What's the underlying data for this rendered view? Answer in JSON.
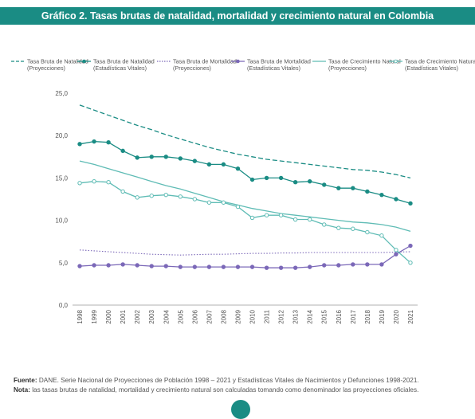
{
  "title": "Gráfico 2. Tasas brutas de natalidad, mortalidad y crecimiento natural en Colombia",
  "footer": {
    "fuente_label": "Fuente:",
    "fuente_text": " DANE. Serie Nacional de Proyecciones de Población 1998 – 2021 y Estadísticas Vitales de Nacimientos y Defunciones 1998-2021.",
    "nota_label": "Nota:",
    "nota_text": " las tasas brutas de natalidad, mortalidad y crecimiento natural son calculadas tomando como denominador las proyecciones oficiales."
  },
  "colors": {
    "dark_teal": "#1a8c84",
    "light_teal": "#5fbcb5",
    "purple": "#7b68b8",
    "axis": "#999999"
  },
  "chart_data": {
    "type": "line",
    "ylim": [
      0,
      25
    ],
    "yticks": [
      "0,0",
      "5,0",
      "10,0",
      "15,0",
      "20,0",
      "25,0"
    ],
    "x": [
      "1998",
      "1999",
      "2000",
      "2001",
      "2002",
      "2003",
      "2004",
      "2005",
      "2006",
      "2007",
      "2008",
      "2009",
      "2010",
      "2011",
      "2012",
      "2013",
      "2014",
      "2015",
      "2016",
      "2017",
      "2018",
      "2019",
      "2020",
      "2021"
    ],
    "series": [
      {
        "name": "Tasa Bruta de Natalidad (Proyecciones)",
        "legend": [
          "Tasa Bruta de Natalidad",
          "(Proyecciones)"
        ],
        "color": "#1a8c84",
        "style": "dashed",
        "marker": "none",
        "values": [
          23.6,
          23.0,
          22.4,
          21.8,
          21.2,
          20.7,
          20.1,
          19.6,
          19.1,
          18.6,
          18.2,
          17.8,
          17.5,
          17.2,
          17.0,
          16.8,
          16.6,
          16.4,
          16.2,
          16.0,
          15.9,
          15.7,
          15.4,
          15.0
        ]
      },
      {
        "name": "Tasa Bruta de Natalidad (Estadísticas Vitales)",
        "legend": [
          "Tasa Bruta de Natalidad",
          "(Estadísticas Vitales)"
        ],
        "color": "#1a8c84",
        "style": "solid",
        "marker": "filled",
        "values": [
          19.0,
          19.3,
          19.2,
          18.2,
          17.4,
          17.5,
          17.5,
          17.3,
          17.0,
          16.6,
          16.6,
          16.1,
          14.8,
          15.0,
          15.0,
          14.5,
          14.6,
          14.2,
          13.8,
          13.8,
          13.4,
          13.0,
          12.5,
          12.0
        ]
      },
      {
        "name": "Tasa Bruta de Mortalidad (Proyecciones)",
        "legend": [
          "Tasa Bruta de Mortalidad",
          "(Proyecciones)"
        ],
        "color": "#7b68b8",
        "style": "dotted",
        "marker": "none",
        "values": [
          6.5,
          6.4,
          6.3,
          6.2,
          6.1,
          6.0,
          5.95,
          5.9,
          5.95,
          6.0,
          6.0,
          6.05,
          6.1,
          6.1,
          6.15,
          6.15,
          6.2,
          6.2,
          6.2,
          6.2,
          6.2,
          6.2,
          6.25,
          6.3
        ]
      },
      {
        "name": "Tasa Bruta de Mortalidad (Estadísticas Vitales)",
        "legend": [
          "Tasa Bruta de Mortalidad",
          "(Estadísticas Vitales)"
        ],
        "color": "#7b68b8",
        "style": "solid",
        "marker": "filled",
        "values": [
          4.6,
          4.7,
          4.7,
          4.8,
          4.7,
          4.6,
          4.6,
          4.5,
          4.5,
          4.5,
          4.5,
          4.5,
          4.5,
          4.4,
          4.4,
          4.4,
          4.5,
          4.7,
          4.7,
          4.8,
          4.8,
          4.8,
          6.0,
          7.0
        ]
      },
      {
        "name": "Tasa de Crecimiento Natural (Proyecciones)",
        "legend": [
          "Tasa de Crecimiento Natural",
          "(Proyecciones)"
        ],
        "color": "#5fbcb5",
        "style": "solid",
        "marker": "none",
        "values": [
          17.0,
          16.6,
          16.1,
          15.6,
          15.1,
          14.6,
          14.1,
          13.7,
          13.2,
          12.7,
          12.2,
          11.8,
          11.4,
          11.1,
          10.8,
          10.6,
          10.4,
          10.2,
          10.0,
          9.8,
          9.7,
          9.5,
          9.2,
          8.7
        ]
      },
      {
        "name": "Tasa de Crecimiento Natural (Estadísticas Vitales)",
        "legend": [
          "Tasa de Crecimiento Natural",
          "(Estadísticas Vitales)"
        ],
        "color": "#5fbcb5",
        "style": "solid",
        "marker": "hollow",
        "values": [
          14.4,
          14.6,
          14.5,
          13.4,
          12.7,
          12.9,
          13.0,
          12.8,
          12.5,
          12.1,
          12.1,
          11.6,
          10.3,
          10.6,
          10.6,
          10.1,
          10.1,
          9.5,
          9.1,
          9.0,
          8.6,
          8.2,
          6.5,
          5.0
        ]
      }
    ]
  }
}
